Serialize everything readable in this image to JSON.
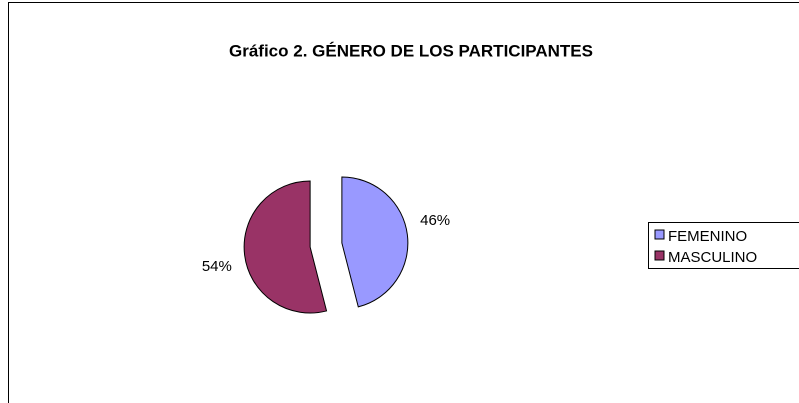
{
  "chart_data": {
    "type": "pie",
    "title": "Gráfico 2. GÉNERO DE LOS PARTICIPANTES",
    "categories": [
      "FEMENINO",
      "MASCULINO"
    ],
    "values": [
      46,
      54
    ],
    "value_labels": [
      "46%",
      "54%"
    ],
    "colors": [
      "#9999ff",
      "#993366"
    ],
    "legend": "right"
  }
}
